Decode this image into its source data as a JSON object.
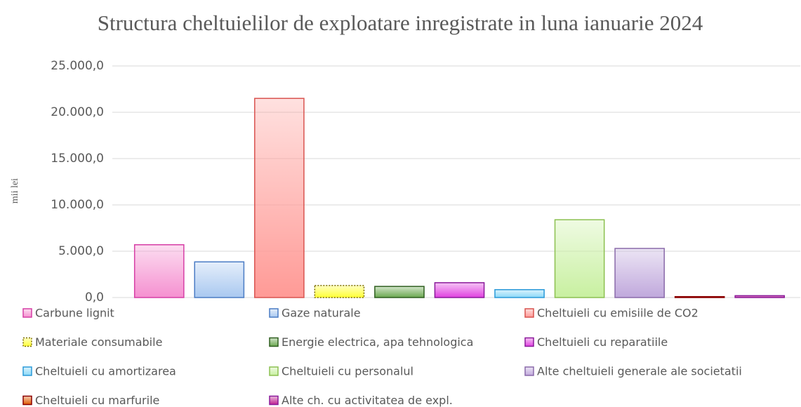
{
  "chart_data": {
    "type": "bar",
    "title": "Structura cheltuielilor de exploatare inregistrate in luna ianuarie 2024",
    "ylabel": "mii lei",
    "ylim": [
      0,
      25000
    ],
    "yticks": [
      {
        "value": 0,
        "label": "0,0"
      },
      {
        "value": 5000,
        "label": "5.000,0"
      },
      {
        "value": 10000,
        "label": "10.000,0"
      },
      {
        "value": 15000,
        "label": "15.000,0"
      },
      {
        "value": 20000,
        "label": "20.000,0"
      },
      {
        "value": 25000,
        "label": "25.000,0"
      }
    ],
    "grid": true,
    "legend": "bottom",
    "series": [
      {
        "name": "Carbune lignit",
        "color": "#f590d0",
        "edgecolor": "#d63fa5",
        "values": [
          5700
        ]
      },
      {
        "name": "Gaze naturale",
        "color": "#a9c8f0",
        "edgecolor": "#4a7cc4",
        "values": [
          3850
        ]
      },
      {
        "name": "Cheltuieli cu emisiile de CO2",
        "color": "#ff9a96",
        "edgecolor": "#d9534f",
        "values": [
          21500
        ]
      },
      {
        "name": "Materiale consumabile",
        "color": "#ffff33",
        "edgecolor": "#7a6a00",
        "edgestyle": "dotted",
        "values": [
          1300
        ]
      },
      {
        "name": "Energie electrica, apa tehnologica",
        "color": "#6aa84f",
        "edgecolor": "#2e5e1e",
        "values": [
          1200
        ]
      },
      {
        "name": "Cheltuieli cu reparatiile",
        "color": "#e040e0",
        "edgecolor": "#8a1a9a",
        "values": [
          1600
        ]
      },
      {
        "name": "Cheltuieli cu amortizarea",
        "color": "#8ad8f8",
        "edgecolor": "#2a9ad8",
        "values": [
          850
        ]
      },
      {
        "name": "Cheltuieli cu personalul",
        "color": "#c8f0a0",
        "edgecolor": "#8cc050",
        "values": [
          8400
        ]
      },
      {
        "name": "Alte cheltuieli generale ale societatii",
        "color": "#c0a8dc",
        "edgecolor": "#8a6aaa",
        "values": [
          5300
        ]
      },
      {
        "name": "Cheltuieli cu marfurile",
        "color": "#e05a00",
        "edgecolor": "#8b0000",
        "values": [
          100
        ]
      },
      {
        "name": "Alte ch. cu activitatea de expl.",
        "color": "#c02090",
        "edgecolor": "#8a1a9a",
        "values": [
          200
        ]
      }
    ]
  }
}
